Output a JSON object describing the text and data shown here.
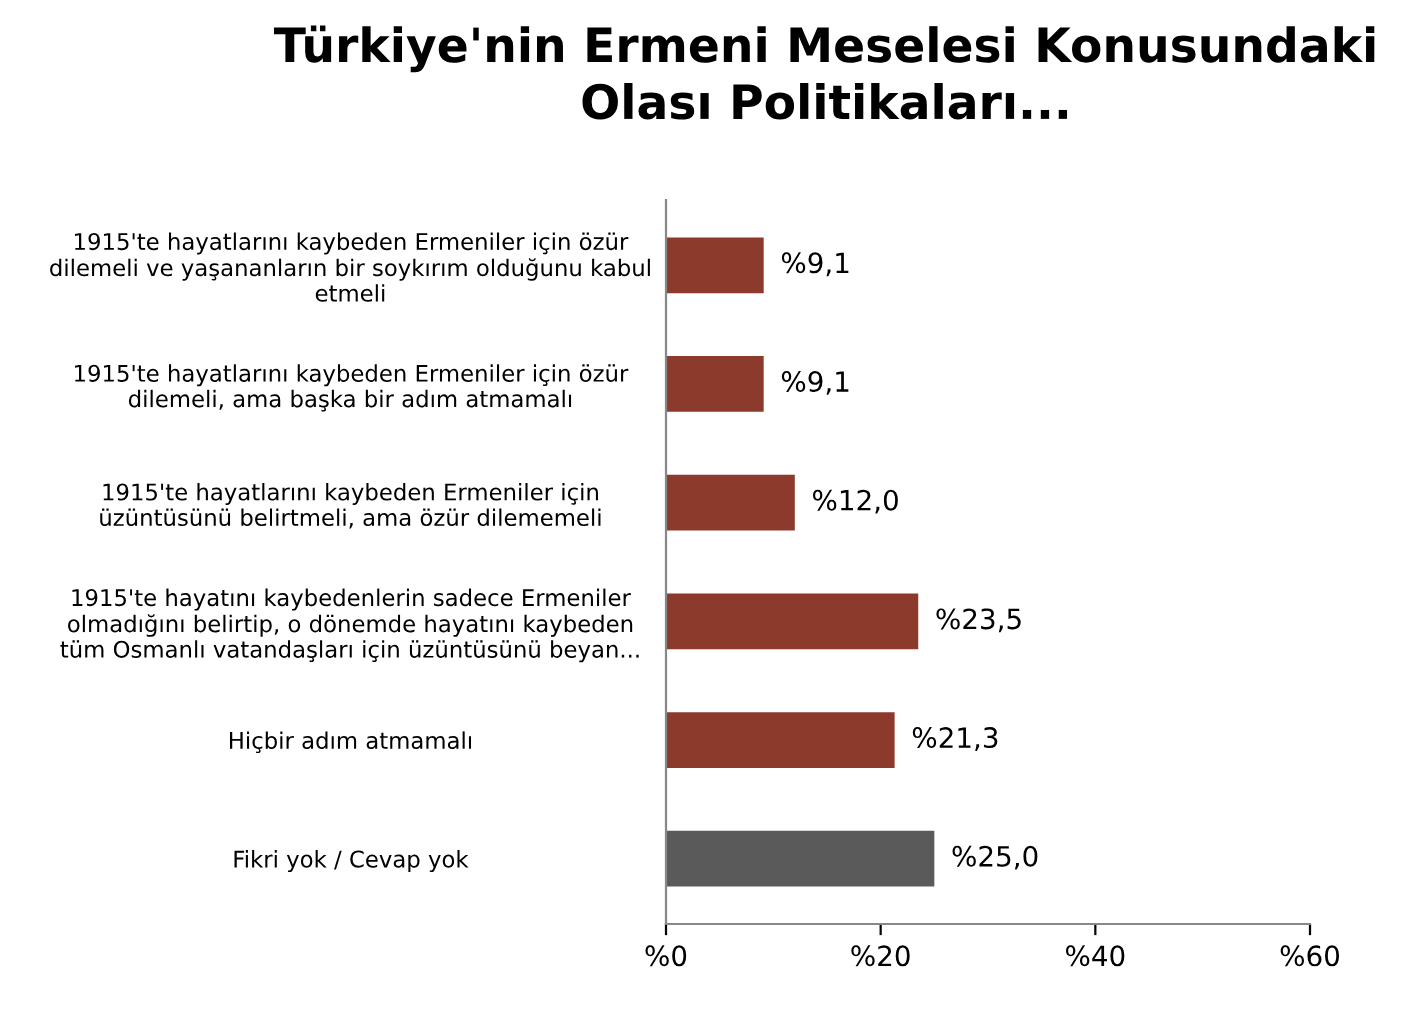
{
  "chart_data": {
    "type": "bar",
    "orientation": "horizontal",
    "title": "Türkiye'nin Ermeni Meselesi Konusundaki\nOlası Politikaları...",
    "categories": [
      "1915'te hayatlarını kaybeden Ermeniler için özür\ndilemeli ve yaşananların bir soykırım olduğunu kabul\netmeli",
      "1915'te hayatlarını kaybeden Ermeniler için özür\ndilemeli, ama başka bir adım atmamalı",
      "1915'te hayatlarını kaybeden Ermeniler için\nüzüntüsünü belirtmeli, ama özür dilememeli",
      "1915'te hayatını kaybedenlerin sadece Ermeniler\nolmadığını belirtip, o dönemde hayatını kaybeden\ntüm Osmanlı vatandaşları için üzüntüsünü beyan...",
      "Hiçbir adım atmamalı",
      "Fikri yok / Cevap yok"
    ],
    "values": [
      9.1,
      9.1,
      12.0,
      23.5,
      21.3,
      25.0
    ],
    "value_labels": [
      "%9,1",
      "%9,1",
      "%12,0",
      "%23,5",
      "%21,3",
      "%25,0"
    ],
    "colors": [
      "#8b3a2c",
      "#8b3a2c",
      "#8b3a2c",
      "#8b3a2c",
      "#8b3a2c",
      "#5a5a5a"
    ],
    "xlim": [
      0,
      60
    ],
    "xticks": [
      {
        "value": 0,
        "label": "%0"
      },
      {
        "value": 20,
        "label": "%20"
      },
      {
        "value": 40,
        "label": "%40"
      },
      {
        "value": 60,
        "label": "%60"
      }
    ],
    "grid": false,
    "legend": false
  }
}
